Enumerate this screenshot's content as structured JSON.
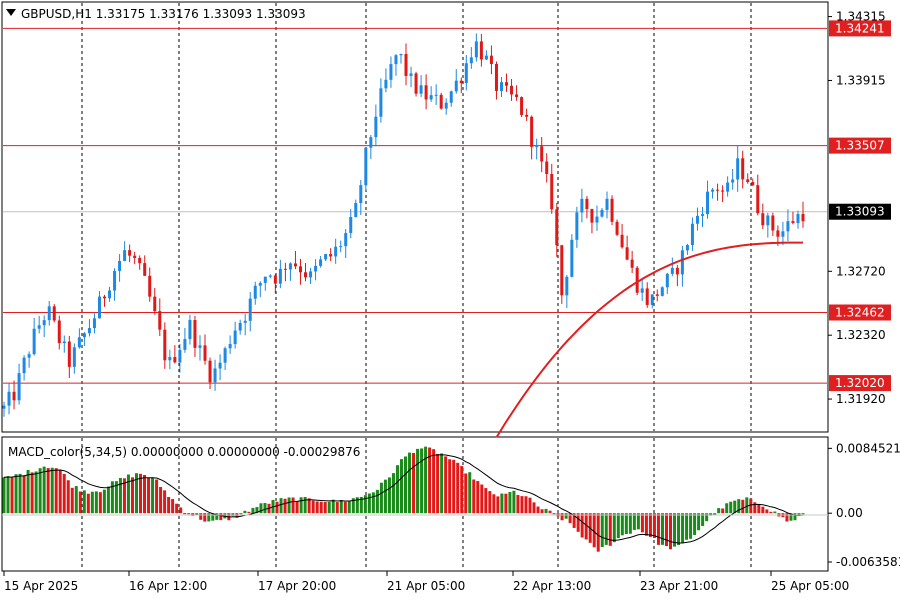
{
  "chart_data": {
    "type": "candlestick",
    "symbol_header": "GBPUSD,H1  1.33175 1.33176 1.33093 1.33093",
    "price_axis": {
      "ylim": [
        1.3172,
        1.344
      ],
      "ticks": [
        "1.34315",
        "1.33915",
        "1.32720",
        "1.32320",
        "1.31920"
      ],
      "tick_values": [
        1.34315,
        1.33915,
        1.3272,
        1.3232,
        1.3192
      ]
    },
    "horizontal_levels": [
      {
        "label": "1.34241",
        "value": 1.34241
      },
      {
        "label": "1.33507",
        "value": 1.33507
      },
      {
        "label": "1.32462",
        "value": 1.32462
      },
      {
        "label": "1.32020",
        "value": 1.3202
      }
    ],
    "current_price": {
      "label": "1.33093",
      "value": 1.33093
    },
    "time_labels": [
      "15 Apr 2025",
      "16 Apr 12:00",
      "17 Apr 20:00",
      "21 Apr 05:00",
      "22 Apr 13:00",
      "23 Apr 21:00",
      "25 Apr 05:00"
    ],
    "price_path": [
      1.3186,
      1.3196,
      1.3218,
      1.3236,
      1.3248,
      1.323,
      1.3215,
      1.3228,
      1.324,
      1.3255,
      1.3272,
      1.3284,
      1.3278,
      1.3262,
      1.3238,
      1.3212,
      1.3225,
      1.3238,
      1.322,
      1.3206,
      1.3218,
      1.3236,
      1.3245,
      1.326,
      1.3272,
      1.3268,
      1.328,
      1.3275,
      1.3268,
      1.3278,
      1.3282,
      1.3292,
      1.3305,
      1.3342,
      1.3372,
      1.3392,
      1.341,
      1.3392,
      1.3384,
      1.338,
      1.3377,
      1.3386,
      1.3398,
      1.3416,
      1.3405,
      1.3388,
      1.3382,
      1.3378,
      1.336,
      1.334,
      1.3318,
      1.3255,
      1.3298,
      1.3315,
      1.3305,
      1.3318,
      1.33,
      1.3278,
      1.3262,
      1.3252,
      1.3262,
      1.3268,
      1.3282,
      1.3302,
      1.3316,
      1.3326,
      1.332,
      1.3338,
      1.333,
      1.331,
      1.33,
      1.3296,
      1.3304,
      1.3309
    ],
    "ma_line": {
      "color": "#e02020",
      "start_index": 45,
      "start": 1.3168,
      "end": 1.329
    },
    "macd": {
      "header": "MACD_color(5,34,5) 0.00000000 0.00000000 -0.00029876",
      "ylim": [
        -0.0074,
        0.0098
      ],
      "ticks": [
        "0.0084521",
        "0.00",
        "-0.0063581"
      ],
      "tick_values": [
        0.0084521,
        0.0,
        -0.0063581
      ],
      "histogram": [
        0.0045,
        0.005,
        0.0055,
        0.0062,
        0.0058,
        0.0035,
        0.0028,
        0.003,
        0.004,
        0.0048,
        0.0052,
        0.0043,
        0.0022,
        0.0004,
        -0.0005,
        -0.0012,
        -0.0009,
        -0.0003,
        0.0006,
        0.0013,
        0.0017,
        0.0019,
        0.0018,
        0.0017,
        0.0015,
        0.0017,
        0.0022,
        0.003,
        0.0048,
        0.0072,
        0.0085,
        0.0083,
        0.0075,
        0.0062,
        0.0048,
        0.003,
        0.0022,
        0.0028,
        0.002,
        0.0006,
        -0.0002,
        -0.0012,
        -0.003,
        -0.005,
        -0.004,
        -0.0028,
        -0.002,
        -0.0032,
        -0.0045,
        -0.0044,
        -0.003,
        -0.001,
        0.0006,
        0.0016,
        0.0018,
        0.0012,
        0.0,
        -0.0012,
        -0.0002
      ],
      "up_color": "#1a8a1a",
      "down_color": "#e01818"
    }
  }
}
